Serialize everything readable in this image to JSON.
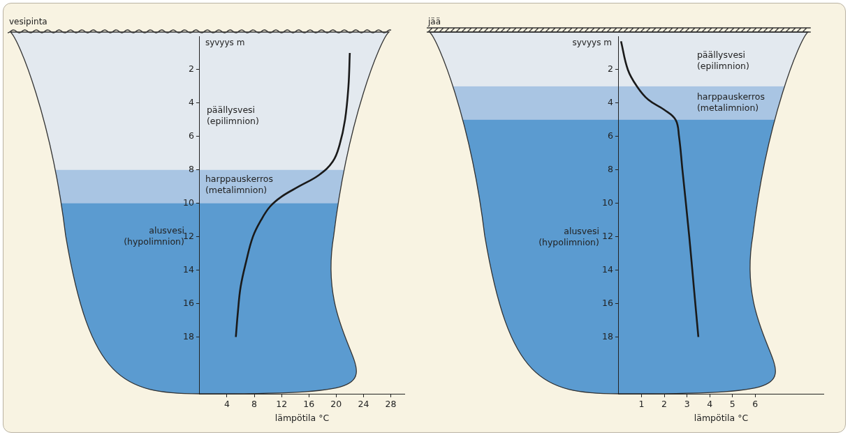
{
  "chart_data": [
    {
      "type": "line",
      "surface": "vesipinta",
      "y_label": "syvyys m",
      "x_label": "lämpötila °C",
      "x": [
        22,
        21.8,
        21.3,
        20.5,
        19.5,
        17.5,
        14.5,
        12,
        10.3,
        9,
        7.8,
        6.8,
        6,
        5.6,
        5.3
      ],
      "y": [
        1,
        3,
        5,
        6.5,
        7.5,
        8.3,
        9,
        9.6,
        10.2,
        11,
        12,
        13.5,
        15,
        16.5,
        18
      ],
      "color": "#1a1a1a",
      "xlim": [
        0,
        30
      ],
      "xticks": [
        4,
        8,
        12,
        16,
        20,
        24,
        28
      ],
      "ylim": [
        0,
        21.4
      ],
      "yticks": [
        2,
        4,
        6,
        8,
        10,
        12,
        14,
        16,
        18
      ],
      "grid": false,
      "layers": [
        {
          "name": "päällysvesi",
          "term": "(epilimnion)",
          "from": 0,
          "to": 8,
          "color": "#e3e9ef"
        },
        {
          "name": "harppauskerros",
          "term": "(metalimnion)",
          "from": 8,
          "to": 10,
          "color": "#a9c5e3"
        },
        {
          "name": "alusvesi",
          "term": "(hypolimnion)",
          "from": 10,
          "to": 21.4,
          "color": "#5b9bd0"
        }
      ]
    },
    {
      "type": "line",
      "surface": "jää",
      "y_label": "syvyys m",
      "x_label": "lämpötila °C",
      "x": [
        0.1,
        0.4,
        0.8,
        1.3,
        2.0,
        2.5,
        2.65,
        2.8,
        3.1,
        3.3,
        3.5
      ],
      "y": [
        0.3,
        2,
        3,
        3.8,
        4.4,
        5,
        6,
        8,
        12,
        15,
        18
      ],
      "color": "#1a1a1a",
      "xlim": [
        0,
        9
      ],
      "xticks": [
        1,
        2,
        3,
        4,
        5,
        6
      ],
      "ylim": [
        0,
        21.4
      ],
      "yticks": [
        2,
        4,
        6,
        8,
        10,
        12,
        14,
        16,
        18
      ],
      "grid": false,
      "layers": [
        {
          "name": "päällysvesi",
          "term": "(epilimnion)",
          "from": 0,
          "to": 3,
          "color": "#e3e9ef"
        },
        {
          "name": "harppauskerros",
          "term": "(metalimnion)",
          "from": 3,
          "to": 5,
          "color": "#a9c5e3"
        },
        {
          "name": "alusvesi",
          "term": "(hypolimnion)",
          "from": 5,
          "to": 21.4,
          "color": "#5b9bd0"
        }
      ]
    }
  ]
}
